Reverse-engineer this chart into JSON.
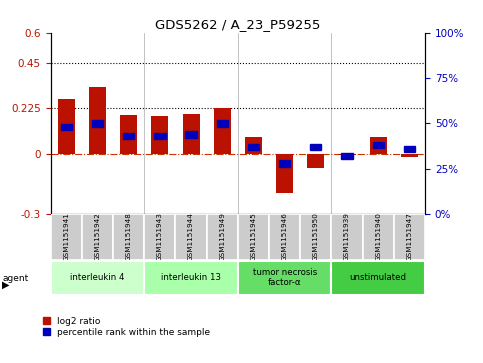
{
  "title": "GDS5262 / A_23_P59255",
  "samples": [
    "GSM1151941",
    "GSM1151942",
    "GSM1151948",
    "GSM1151943",
    "GSM1151944",
    "GSM1151949",
    "GSM1151945",
    "GSM1151946",
    "GSM1151950",
    "GSM1151939",
    "GSM1151940",
    "GSM1151947"
  ],
  "log2_ratio": [
    0.27,
    0.33,
    0.19,
    0.185,
    0.195,
    0.225,
    0.085,
    -0.195,
    -0.07,
    -0.005,
    0.085,
    -0.015
  ],
  "percentile_rank": [
    48,
    50,
    43,
    43,
    44,
    50,
    37,
    28,
    37,
    32,
    38,
    36
  ],
  "agents": [
    {
      "label": "interleukin 4",
      "start": 0,
      "end": 3,
      "color": "#ccffcc"
    },
    {
      "label": "interleukin 13",
      "start": 3,
      "end": 6,
      "color": "#aaffaa"
    },
    {
      "label": "tumor necrosis\nfactor-α",
      "start": 6,
      "end": 9,
      "color": "#66dd66"
    },
    {
      "label": "unstimulated",
      "start": 9,
      "end": 12,
      "color": "#44cc44"
    }
  ],
  "ylim_left": [
    -0.3,
    0.6
  ],
  "ylim_right": [
    0,
    100
  ],
  "yticks_left": [
    -0.3,
    0,
    0.225,
    0.45,
    0.6
  ],
  "yticks_right": [
    0,
    25,
    50,
    75,
    100
  ],
  "bar_color_red": "#bb1100",
  "bar_color_blue": "#0000bb",
  "dotted_line_y": [
    0.225,
    0.45
  ],
  "zero_line_color": "#cc3300",
  "bg_color": "#ffffff",
  "sample_label_bg": "#cccccc",
  "fig_width": 4.83,
  "fig_height": 3.63,
  "fig_dpi": 100
}
